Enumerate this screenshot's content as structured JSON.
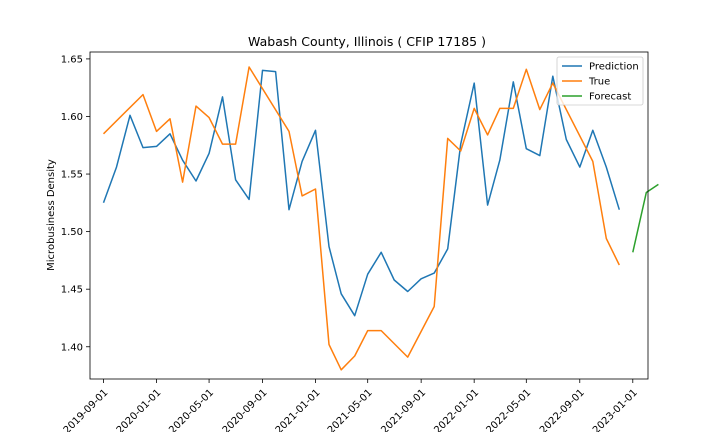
{
  "chart_data": {
    "type": "line",
    "title": "Wabash County, Illinois ( CFIP 17185 )",
    "xlabel": "",
    "ylabel": "Microbusiness Density",
    "xlim": [
      "2019-08-01",
      "2023-02-05"
    ],
    "ylim": [
      1.372,
      1.656
    ],
    "grid": false,
    "legend_position": "top-right",
    "x_ticks": [
      "2019-09-01",
      "2020-01-01",
      "2020-05-01",
      "2020-09-01",
      "2021-01-01",
      "2021-05-01",
      "2021-09-01",
      "2022-01-01",
      "2022-05-01",
      "2022-09-01",
      "2023-01-01"
    ],
    "y_ticks": [
      "1.40",
      "1.45",
      "1.50",
      "1.55",
      "1.60",
      "1.65"
    ],
    "series": [
      {
        "name": "Prediction",
        "color": "#1f77b4",
        "points": [
          [
            "2019-09-01",
            1.525
          ],
          [
            "2019-10-01",
            1.556
          ],
          [
            "2019-11-01",
            1.601
          ],
          [
            "2019-12-01",
            1.573
          ],
          [
            "2020-01-01",
            1.574
          ],
          [
            "2020-02-01",
            1.585
          ],
          [
            "2020-03-01",
            1.562
          ],
          [
            "2020-04-01",
            1.544
          ],
          [
            "2020-05-01",
            1.568
          ],
          [
            "2020-06-01",
            1.617
          ],
          [
            "2020-07-01",
            1.545
          ],
          [
            "2020-08-01",
            1.528
          ],
          [
            "2020-09-01",
            1.64
          ],
          [
            "2020-10-01",
            1.639
          ],
          [
            "2020-11-01",
            1.519
          ],
          [
            "2020-12-01",
            1.561
          ],
          [
            "2021-01-01",
            1.588
          ],
          [
            "2021-02-01",
            1.487
          ],
          [
            "2021-03-01",
            1.446
          ],
          [
            "2021-04-01",
            1.427
          ],
          [
            "2021-05-01",
            1.463
          ],
          [
            "2021-06-01",
            1.482
          ],
          [
            "2021-07-01",
            1.458
          ],
          [
            "2021-08-01",
            1.448
          ],
          [
            "2021-09-01",
            1.459
          ],
          [
            "2021-10-01",
            1.464
          ],
          [
            "2021-11-01",
            1.485
          ],
          [
            "2021-12-01",
            1.576
          ],
          [
            "2022-01-01",
            1.629
          ],
          [
            "2022-02-01",
            1.523
          ],
          [
            "2022-03-01",
            1.562
          ],
          [
            "2022-04-01",
            1.63
          ],
          [
            "2022-05-01",
            1.572
          ],
          [
            "2022-06-01",
            1.566
          ],
          [
            "2022-07-01",
            1.635
          ],
          [
            "2022-08-01",
            1.58
          ],
          [
            "2022-09-01",
            1.556
          ],
          [
            "2022-10-01",
            1.588
          ],
          [
            "2022-11-01",
            1.556
          ],
          [
            "2022-12-01",
            1.519
          ]
        ]
      },
      {
        "name": "True",
        "color": "#ff7f0e",
        "points": [
          [
            "2019-09-01",
            1.585
          ],
          [
            "2019-12-01",
            1.619
          ],
          [
            "2020-01-01",
            1.587
          ],
          [
            "2020-02-01",
            1.598
          ],
          [
            "2020-03-01",
            1.543
          ],
          [
            "2020-04-01",
            1.609
          ],
          [
            "2020-05-01",
            1.599
          ],
          [
            "2020-06-01",
            1.576
          ],
          [
            "2020-07-01",
            1.576
          ],
          [
            "2020-08-01",
            1.643
          ],
          [
            "2020-11-01",
            1.587
          ],
          [
            "2020-12-01",
            1.531
          ],
          [
            "2021-01-01",
            1.537
          ],
          [
            "2021-02-01",
            1.402
          ],
          [
            "2021-03-01",
            1.38
          ],
          [
            "2021-04-01",
            1.392
          ],
          [
            "2021-05-01",
            1.414
          ],
          [
            "2021-06-01",
            1.414
          ],
          [
            "2021-08-01",
            1.391
          ],
          [
            "2021-10-01",
            1.435
          ],
          [
            "2021-11-01",
            1.581
          ],
          [
            "2021-12-01",
            1.57
          ],
          [
            "2022-01-01",
            1.607
          ],
          [
            "2022-02-01",
            1.584
          ],
          [
            "2022-03-01",
            1.607
          ],
          [
            "2022-04-01",
            1.607
          ],
          [
            "2022-05-01",
            1.641
          ],
          [
            "2022-06-01",
            1.606
          ],
          [
            "2022-07-01",
            1.629
          ],
          [
            "2022-10-01",
            1.561
          ],
          [
            "2022-11-01",
            1.494
          ],
          [
            "2022-12-01",
            1.471
          ]
        ]
      },
      {
        "name": "Forecast",
        "color": "#2ca02c",
        "points": [
          [
            "2023-01-01",
            1.482
          ],
          [
            "2023-02-01",
            1.534
          ],
          [
            "2023-03-01",
            1.541
          ]
        ]
      }
    ]
  }
}
